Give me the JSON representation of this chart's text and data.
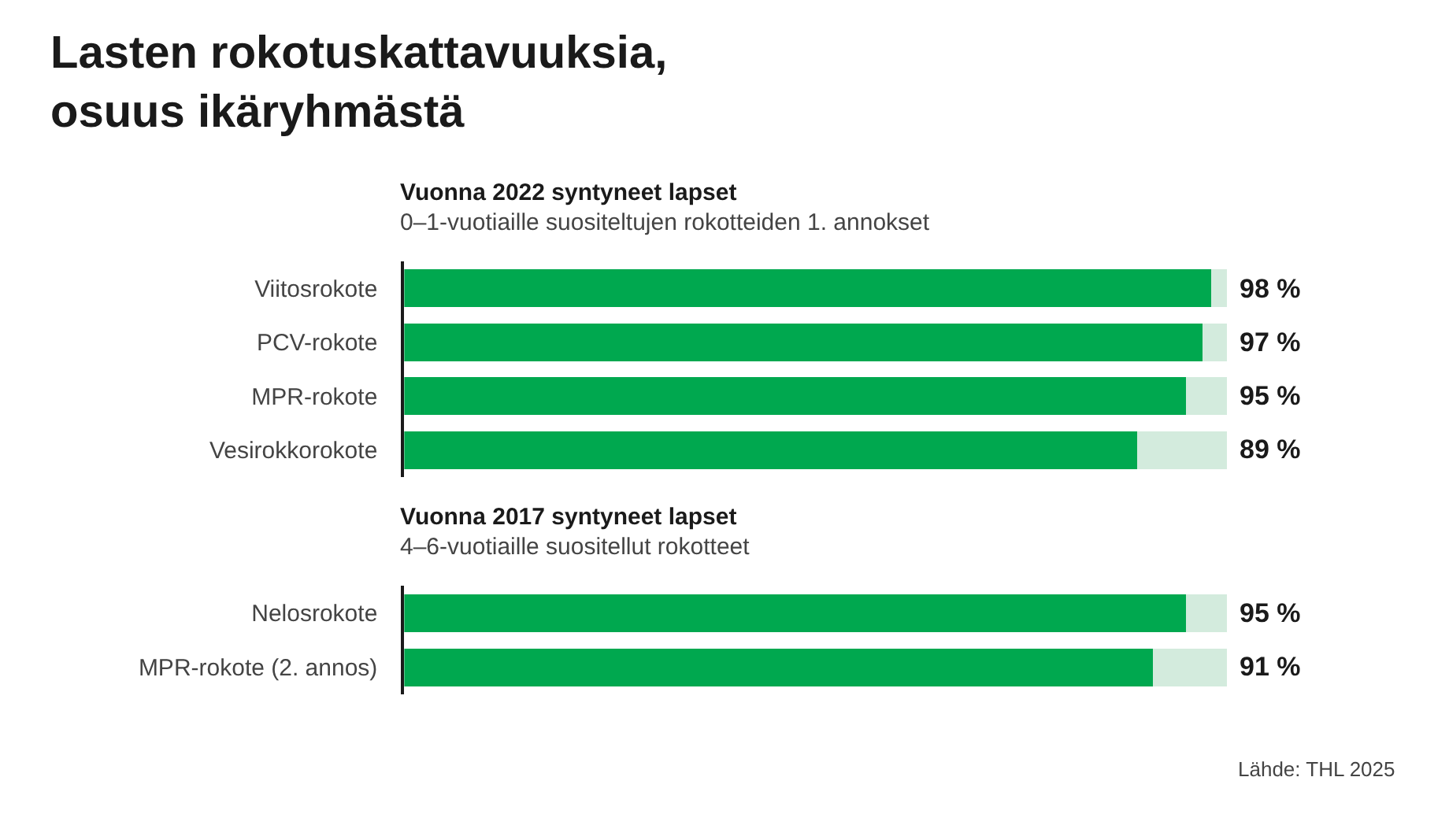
{
  "chart_data": [
    {
      "type": "bar",
      "orientation": "horizontal",
      "stacked": true,
      "title": "Vuonna 2022 syntyneet lapset",
      "subtitle": "0–1-vuotiaille suositeltujen rokotteiden 1. annokset",
      "categories": [
        "Viitosrokote",
        "PCV-rokote",
        "MPR-rokote",
        "Vesirokkorokote"
      ],
      "series": [
        {
          "color": "#00a84f",
          "values": [
            98,
            97,
            95,
            89
          ],
          "value_labels": [
            "98 %",
            "97 %",
            "95 %",
            "89 %"
          ]
        },
        {
          "color": "#d3ebdd",
          "values": [
            2,
            3,
            5,
            11
          ]
        }
      ],
      "xlim": [
        0,
        100
      ],
      "tick_labels": "y",
      "annotations": [
        "Lasten rokotuskattavuuksia,\nosuus ikäryhmästä"
      ]
    },
    {
      "type": "bar",
      "orientation": "horizontal",
      "stacked": true,
      "title": "Vuonna 2017 syntyneet lapset",
      "subtitle": "4–6-vuotiaille suositellut rokotteet",
      "categories": [
        "Nelosrokote",
        "MPR-rokote (2. annos)"
      ],
      "series": [
        {
          "color": "#00a84f",
          "values": [
            95,
            91
          ],
          "value_labels": [
            "95 %",
            "91 %"
          ]
        },
        {
          "color": "#d3ebdd",
          "values": [
            5,
            9
          ]
        }
      ],
      "xlim": [
        0,
        100
      ],
      "tick_labels": "y",
      "annotations": [
        "Lähde: THL 2025"
      ]
    }
  ]
}
